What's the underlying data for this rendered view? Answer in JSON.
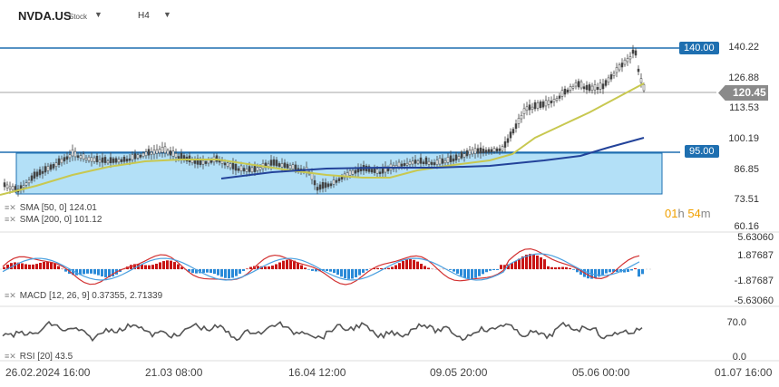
{
  "header": {
    "symbol": "NVDA.US",
    "type": "Stock",
    "timeframe": "H4"
  },
  "price_axis": [
    "140.22",
    "126.88",
    "113.53",
    "100.19",
    "86.85",
    "73.51",
    "60.16"
  ],
  "tags": {
    "resistance": "140.00",
    "current": "120.45",
    "support": "95.00"
  },
  "indicators": {
    "sma50": "SMA [50, 0] 124.01",
    "sma200": "SMA [200, 0] 101.12",
    "macd": "MACD [12, 26, 9] 0.37355, 2.71339",
    "rsi": "RSI [20] 43.5"
  },
  "timer": {
    "h": "01",
    "h_unit": "h",
    "m": "54",
    "m_unit": "m"
  },
  "macd_axis": [
    "5.63060",
    "1.87687",
    "-1.87687",
    "-5.63060"
  ],
  "rsi_axis": [
    "70.0",
    "0.0"
  ],
  "time_axis": [
    "26.02.2024 16:00",
    "21.03 08:00",
    "16.04 12:00",
    "09.05 20:00",
    "05.06 00:00",
    "01.07 16:00"
  ],
  "colors": {
    "level_line": "#1e6fb0",
    "box_fill": "#b3e0f7",
    "sma50": "#c8c850",
    "sma200": "#23439a",
    "macd_pos": "#c81414",
    "macd_neg": "#2a8ad8",
    "macd_line": "#d23232",
    "signal_line": "#4aa0e0",
    "rsi_line": "#555555"
  }
}
